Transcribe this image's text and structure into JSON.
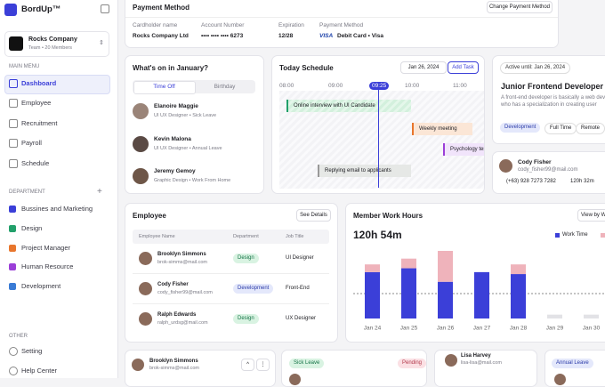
{
  "sidebar": {
    "brand": "BordUp™",
    "team": {
      "name": "Rocks Company",
      "members": "Team • 20 Members"
    },
    "main_menu_label": "MAIN MENU",
    "main_menu": [
      "Dashboard",
      "Employee",
      "Recruitment",
      "Payroll",
      "Schedule"
    ],
    "department_label": "DEPARTMENT",
    "add": "+",
    "departments": [
      {
        "name": "Bussines and Marketing",
        "color": "#3b3fd8"
      },
      {
        "name": "Design",
        "color": "#22a06b"
      },
      {
        "name": "Project Manager",
        "color": "#e8762d"
      },
      {
        "name": "Human Resource",
        "color": "#9b3fd8"
      },
      {
        "name": "Development",
        "color": "#3a7bd5"
      }
    ],
    "other_label": "OTHER",
    "other": [
      "Setting",
      "Help Center"
    ]
  },
  "payment": {
    "title": "Payment Method",
    "button": "Change Payment Method",
    "fields": [
      {
        "label": "Cardholder name",
        "value": "Rocks Company Ltd"
      },
      {
        "label": "Account Number",
        "value": "•••• •••• •••• 6273"
      },
      {
        "label": "Expiration",
        "value": "12/28"
      },
      {
        "label": "Payment Method",
        "value": "Debit Card • Visa"
      }
    ],
    "card_brand": "VISA"
  },
  "whats_on": {
    "title": "What's on in January?",
    "tabs": [
      "Time Off",
      "Birthday"
    ],
    "people": [
      {
        "name": "Elanoire Maggie",
        "detail": "UI UX Designer • Sick Leave"
      },
      {
        "name": "Kevin Malona",
        "detail": "UI UX Designer • Annual Leave"
      },
      {
        "name": "Jeremy Gemoy",
        "detail": "Graphic Design • Work From Home"
      }
    ]
  },
  "schedule": {
    "title": "Today Schedule",
    "date": "Jan 26, 2024",
    "button": "Add Task",
    "times": [
      "08:00",
      "09:00",
      "09:25",
      "10:00",
      "11:00"
    ],
    "events": [
      "Online interview with UI Candidate",
      "Weekly meeting",
      "Psychology test",
      "Replying email to applicants"
    ]
  },
  "job": {
    "active": "Active until: Jan 26, 2024",
    "title": "Junior Frontend Developer",
    "description": "A front-end developer is basically a web developer who has a specialization in creating user interfaces for",
    "tags": [
      "Development",
      "Full Time",
      "Remote"
    ]
  },
  "contact": {
    "name": "Cody Fisher",
    "email": "cody_fisher99@mail.com",
    "phone": "(+63) 928 7273 7282",
    "hours": "120h 32m"
  },
  "employee": {
    "title": "Employee",
    "button": "See Details",
    "columns": [
      "Employee Name",
      "Department",
      "Job Title"
    ],
    "rows": [
      {
        "name": "Brooklyn Simmons",
        "email": "brok-simms@mail.com",
        "department": "Design",
        "job": "UI Designer"
      },
      {
        "name": "Cody Fisher",
        "email": "cody_fisher99@mail.com",
        "department": "Development",
        "job": "Front-End"
      },
      {
        "name": "Ralph Edwards",
        "email": "ralph_urdsg@mail.com",
        "department": "Design",
        "job": "UX Designer"
      }
    ]
  },
  "chart_data": {
    "type": "bar",
    "stacked": true,
    "title": "Member Work Hours",
    "total": "120h 54m",
    "button": "View by Week",
    "categories": [
      "Jan 24",
      "Jan 25",
      "Jan 26",
      "Jan 27",
      "Jan 28",
      "Jan 29",
      "Jan 30"
    ],
    "series": [
      {
        "name": "Work Time",
        "color": "#3b3fd8",
        "colors": [
          "#3b3fd8",
          "#3b3fd8",
          "#3b3fd8",
          "#3b3fd8",
          "#3b3fd8",
          "#e2e2e6",
          "#e2e2e6"
        ],
        "values": [
          24,
          26,
          19,
          24,
          23,
          2,
          2
        ]
      },
      {
        "name": "Overtime",
        "color": "#efb3bb",
        "values": [
          4,
          5,
          16,
          0,
          5,
          0,
          0
        ]
      }
    ]
  },
  "bottom": {
    "card1": {
      "name": "Brooklyn Simmons",
      "email": "brok-simms@mail.com"
    },
    "card2": {
      "type": "Sick Leave",
      "status": "Pending"
    },
    "card3": {
      "name": "Lisa Harvey",
      "email": "lisa-lisa@mail.com"
    },
    "card4": {
      "type": "Annual Leave"
    }
  }
}
